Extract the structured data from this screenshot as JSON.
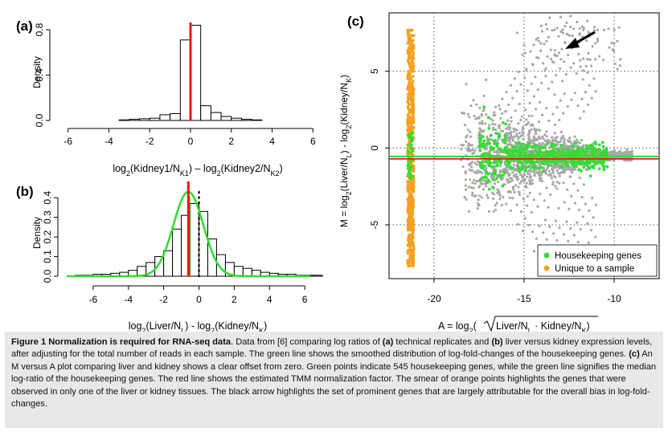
{
  "panel_a": {
    "label": "(a)",
    "ylabel": "Density",
    "xlabel_html": "log<tspan baseline-shift='sub' font-size='9'>2</tspan>(Kidney1/N<tspan baseline-shift='sub' font-size='9'>K1</tspan>) – log<tspan baseline-shift='sub' font-size='9'>2</tspan>(Kidney2/N<tspan baseline-shift='sub' font-size='9'>K2</tspan>)"
  },
  "panel_b": {
    "label": "(b)",
    "ylabel": "Density"
  },
  "panel_c": {
    "label": "(c)",
    "legend": [
      {
        "label": "Housekeeping genes",
        "color": "#33dd33"
      },
      {
        "label": "Unique to a sample",
        "color": "#f5a020"
      }
    ]
  },
  "colors": {
    "red": "#e81818",
    "green": "#33dd33",
    "orange": "#f5a020",
    "grey": "#a8a8a8"
  },
  "chart_data": [
    {
      "type": "bar",
      "panel": "a",
      "xlim": [
        -6.5,
        6.5
      ],
      "ylim": [
        0,
        0.85
      ],
      "xticks": [
        "-6",
        "-4",
        "-2",
        "0",
        "2",
        "4",
        "6"
      ],
      "yticks": [
        "0.0",
        "0.4",
        "0.8"
      ],
      "bin_width": 0.5,
      "bins_left": [
        -3.5,
        -3.0,
        -2.5,
        -2.0,
        -1.5,
        -1.0,
        -0.5,
        0.0,
        0.5,
        1.0,
        1.5,
        2.0,
        2.5,
        3.0
      ],
      "values": [
        0.005,
        0.01,
        0.015,
        0.02,
        0.05,
        0.06,
        0.71,
        0.84,
        0.13,
        0.07,
        0.035,
        0.02,
        0.01,
        0.005
      ],
      "reference_line_x": 0.0,
      "reference_line_color": "red"
    },
    {
      "type": "bar",
      "panel": "b",
      "xlim": [
        -7.5,
        7.5
      ],
      "ylim": [
        0,
        0.45
      ],
      "xticks": [
        "-6",
        "-4",
        "-2",
        "0",
        "2",
        "4",
        "6"
      ],
      "yticks": [
        "0.0",
        "0.1",
        "0.2",
        "0.3",
        "0.4"
      ],
      "bin_width": 0.5,
      "bins_left": [
        -7.0,
        -6.5,
        -6.0,
        -5.5,
        -5.0,
        -4.5,
        -4.0,
        -3.5,
        -3.0,
        -2.5,
        -2.0,
        -1.5,
        -1.0,
        -0.5,
        0.0,
        0.5,
        1.0,
        1.5,
        2.0,
        2.5,
        3.0,
        3.5,
        4.0,
        4.5,
        5.0,
        5.5,
        6.0,
        6.5
      ],
      "values": [
        0.005,
        0.005,
        0.01,
        0.01,
        0.015,
        0.02,
        0.03,
        0.05,
        0.07,
        0.1,
        0.13,
        0.24,
        0.31,
        0.37,
        0.33,
        0.19,
        0.11,
        0.07,
        0.05,
        0.04,
        0.03,
        0.02,
        0.015,
        0.01,
        0.01,
        0.005,
        0.005,
        0.005
      ],
      "smooth_curve": {
        "mean": -0.6,
        "sd": 0.85,
        "peak": 0.43,
        "color": "green"
      },
      "median_line_x": -0.55,
      "median_line_color": "green",
      "tmm_line_x": -0.6,
      "tmm_line_color": "red",
      "dotted_line_x": 0.0
    },
    {
      "type": "scatter",
      "panel": "c",
      "xlim": [
        -22.5,
        -7.5
      ],
      "ylim": [
        -8.5,
        8.8
      ],
      "xticks": [
        "-20",
        "-15",
        "-10"
      ],
      "yticks": [
        "-5",
        "0",
        "5"
      ],
      "grid_x": [
        -20,
        -15,
        -10
      ],
      "grid_y": [
        -5,
        0,
        5
      ],
      "series": [
        {
          "name": "Housekeeping genes",
          "color": "green"
        },
        {
          "name": "Unique to a sample",
          "color": "orange"
        }
      ],
      "median_line_y": -0.55,
      "tmm_line_y": -0.6
    }
  ],
  "caption": {
    "parts": [
      {
        "text": "Figure 1 Normalization is required for RNA-seq data",
        "bold": true
      },
      {
        "text": ". Data from [6] comparing log ratios of ",
        "bold": false
      },
      {
        "text": "(a)",
        "bold": true
      },
      {
        "text": " technical replicates and ",
        "bold": false
      },
      {
        "text": "(b)",
        "bold": true
      },
      {
        "text": " liver versus kidney expression levels, after adjusting for the total number of reads in each sample. The green line shows the smoothed distribution of log-fold-changes of the housekeeping genes. ",
        "bold": false
      },
      {
        "text": "(c)",
        "bold": true
      },
      {
        "text": " An M versus A plot comparing liver and kidney shows a clear offset from zero. Green points indicate 545 housekeeping genes, while the green line signifies the median log-ratio of the housekeeping genes. The red line shows the estimated TMM normalization factor. The smear of orange points highlights the genes that were observed in only one of the liver or kidney tissues. The black arrow highlights the set of prominent genes that are largely attributable for the overall bias in log-fold-changes.",
        "bold": false
      }
    ]
  }
}
